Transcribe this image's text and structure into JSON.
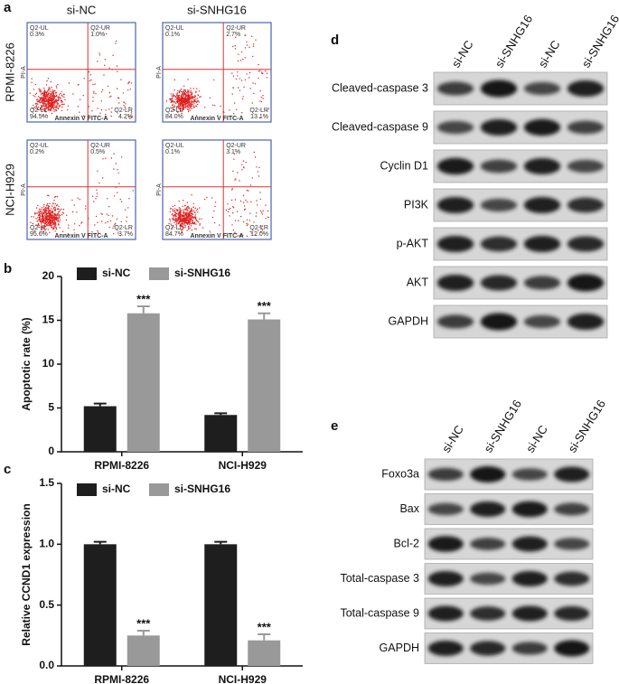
{
  "panel_a": {
    "label": "a",
    "columns": [
      "si-NC",
      "si-SNHG16"
    ],
    "rows": [
      "RPMI-8226",
      "NCI-H929"
    ],
    "x_axis": "Annexin V FITC-A",
    "y_axis": "PI-A",
    "quadrants": [
      "Q2-UL",
      "Q2-UR",
      "Q2-LL",
      "Q2-LR"
    ],
    "plots": [
      [
        "0.3%",
        "1.0%",
        "94.5%",
        "4.2%"
      ],
      [
        "0.1%",
        "2.7%",
        "84.0%",
        "13.1%"
      ],
      [
        "0.2%",
        "0.5%",
        "95.6%",
        "3.7%"
      ],
      [
        "0.1%",
        "3.1%",
        "84.7%",
        "12.0%"
      ]
    ]
  },
  "chart_data": [
    {
      "type": "bar",
      "panel": "b",
      "ylabel": "Apoptotic rate (%)",
      "categories": [
        "RPMI-8226",
        "NCI-H929"
      ],
      "series": [
        {
          "name": "si-NC",
          "color": "#1e1e1e",
          "values": [
            5.2,
            4.2
          ],
          "errors": [
            0.3,
            0.2
          ]
        },
        {
          "name": "si-SNHG16",
          "color": "#999999",
          "values": [
            15.8,
            15.1
          ],
          "errors": [
            0.8,
            0.7
          ]
        }
      ],
      "annotations": [
        "***",
        "***"
      ],
      "ylim": [
        0,
        20
      ],
      "yticks": [
        0,
        5,
        10,
        15,
        20
      ]
    },
    {
      "type": "bar",
      "panel": "c",
      "ylabel": "Relative CCND1 expression",
      "categories": [
        "RPMI-8226",
        "NCI-H929"
      ],
      "series": [
        {
          "name": "si-NC",
          "color": "#1e1e1e",
          "values": [
            1.0,
            1.0
          ],
          "errors": [
            0.02,
            0.02
          ]
        },
        {
          "name": "si-SNHG16",
          "color": "#999999",
          "values": [
            0.25,
            0.21
          ],
          "errors": [
            0.04,
            0.05
          ]
        }
      ],
      "annotations": [
        "***",
        "***"
      ],
      "ylim": [
        0,
        1.5
      ],
      "yticks": [
        {
          "value": 0,
          "label": "0.0"
        },
        {
          "value": 0.5,
          "label": "0.5"
        },
        {
          "value": 1,
          "label": "1.0"
        },
        {
          "value": 1.5,
          "label": "1.5"
        }
      ]
    }
  ],
  "panel_d": {
    "label": "d",
    "lanes": [
      "si-NC",
      "si-SNHG16",
      "si-NC",
      "si-SNHG16"
    ],
    "rows": [
      "Cleaved-caspase 3",
      "Cleaved-caspase 9",
      "Cyclin D1",
      "PI3K",
      "p-AKT",
      "AKT",
      "GAPDH"
    ]
  },
  "panel_e": {
    "label": "e",
    "lanes": [
      "si-NC",
      "si-SNHG16",
      "si-NC",
      "si-SNHG16"
    ],
    "rows": [
      "Foxo3a",
      "Bax",
      "Bcl-2",
      "Total-caspase 3",
      "Total-caspase 9",
      "GAPDH"
    ]
  }
}
